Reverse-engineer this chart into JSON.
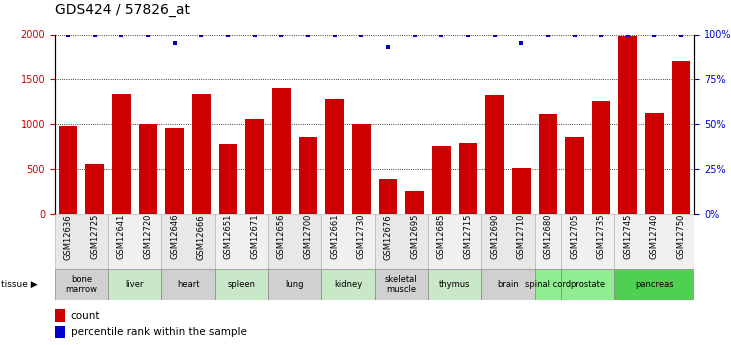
{
  "title": "GDS424 / 57826_at",
  "gsm_labels": [
    "GSM12636",
    "GSM12725",
    "GSM12641",
    "GSM12720",
    "GSM12646",
    "GSM12666",
    "GSM12651",
    "GSM12671",
    "GSM12656",
    "GSM12700",
    "GSM12661",
    "GSM12730",
    "GSM12676",
    "GSM12695",
    "GSM12685",
    "GSM12715",
    "GSM12690",
    "GSM12710",
    "GSM12680",
    "GSM12705",
    "GSM12735",
    "GSM12745",
    "GSM12740",
    "GSM12750"
  ],
  "counts": [
    980,
    560,
    1340,
    1000,
    960,
    1340,
    780,
    1060,
    1400,
    860,
    1280,
    1000,
    390,
    250,
    760,
    790,
    1330,
    510,
    1110,
    860,
    1260,
    1980,
    1130,
    1710
  ],
  "percentile": [
    100,
    100,
    100,
    100,
    95,
    100,
    100,
    100,
    100,
    100,
    100,
    100,
    93,
    100,
    100,
    100,
    100,
    95,
    100,
    100,
    100,
    100,
    100,
    100
  ],
  "tissues": [
    {
      "name": "bone\nmarrow",
      "start": 0,
      "end": 2,
      "color": "#d0d0d0"
    },
    {
      "name": "liver",
      "start": 2,
      "end": 4,
      "color": "#c8e8c8"
    },
    {
      "name": "heart",
      "start": 4,
      "end": 6,
      "color": "#d0d0d0"
    },
    {
      "name": "spleen",
      "start": 6,
      "end": 8,
      "color": "#c8e8c8"
    },
    {
      "name": "lung",
      "start": 8,
      "end": 10,
      "color": "#d0d0d0"
    },
    {
      "name": "kidney",
      "start": 10,
      "end": 12,
      "color": "#c8e8c8"
    },
    {
      "name": "skeletal\nmuscle",
      "start": 12,
      "end": 14,
      "color": "#d0d0d0"
    },
    {
      "name": "thymus",
      "start": 14,
      "end": 16,
      "color": "#c8e8c8"
    },
    {
      "name": "brain",
      "start": 16,
      "end": 18,
      "color": "#d0d0d0"
    },
    {
      "name": "spinal cord",
      "start": 18,
      "end": 19,
      "color": "#90ee90"
    },
    {
      "name": "prostate",
      "start": 19,
      "end": 21,
      "color": "#90ee90"
    },
    {
      "name": "pancreas",
      "start": 21,
      "end": 24,
      "color": "#50d050"
    }
  ],
  "bar_color": "#cc0000",
  "percentile_color": "#0000cc",
  "background_color": "#ffffff",
  "ylim_left": [
    0,
    2000
  ],
  "ylim_right": [
    0,
    100
  ],
  "yticks_left": [
    0,
    500,
    1000,
    1500,
    2000
  ],
  "yticks_right": [
    0,
    25,
    50,
    75,
    100
  ],
  "title_fontsize": 10
}
